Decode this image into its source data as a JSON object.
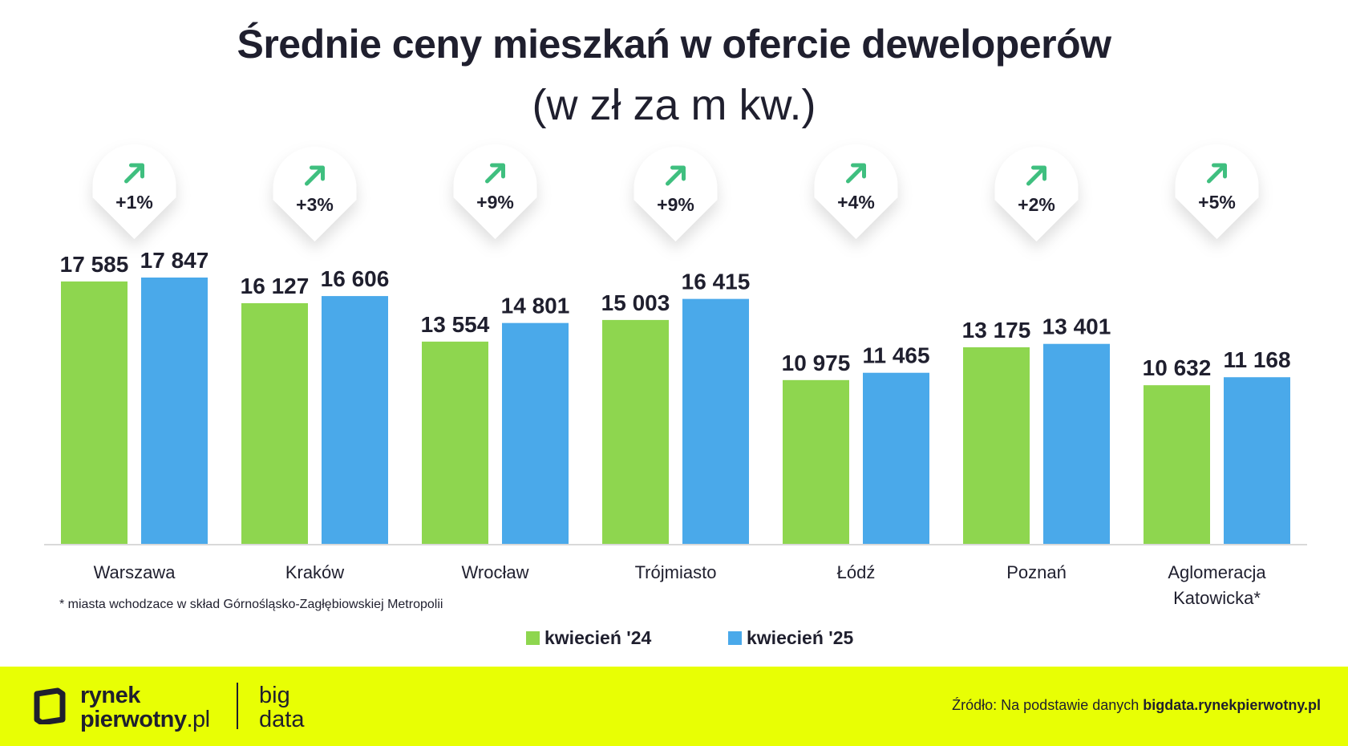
{
  "title": "Średnie ceny mieszkań w ofercie deweloperów",
  "subtitle": "(w zł za m kw.)",
  "chart_data": {
    "type": "bar",
    "title": "Średnie ceny mieszkań w ofercie deweloperów",
    "subtitle": "(w zł za m kw.)",
    "categories": [
      "Warszawa",
      "Kraków",
      "Wrocław",
      "Trójmiasto",
      "Łódź",
      "Poznań",
      "Aglomeracja Katowicka*"
    ],
    "series": [
      {
        "name": "kwiecień '24",
        "color": "#8ed64f",
        "values": [
          17585,
          16127,
          13554,
          15003,
          10975,
          13175,
          10632
        ],
        "labels": [
          "17 585",
          "16 127",
          "13 554",
          "15 003",
          "10 975",
          "13 175",
          "10 632"
        ]
      },
      {
        "name": "kwiecień '25",
        "color": "#4aa9ea",
        "values": [
          17847,
          16606,
          14801,
          16415,
          11465,
          13401,
          11168
        ],
        "labels": [
          "17 847",
          "16 606",
          "14 801",
          "16 415",
          "11 465",
          "13 401",
          "11 168"
        ]
      }
    ],
    "changes": [
      "+1%",
      "+3%",
      "+9%",
      "+9%",
      "+4%",
      "+2%",
      "+5%"
    ],
    "ylim": [
      0,
      19000
    ],
    "grid": false,
    "legend": "bottom-center",
    "arrow_color": "#3fbf7f"
  },
  "footnote": "* miasta wchodzace w skład Górnośląsko-Zagłębiowskiej Metropolii",
  "legend": {
    "item1": "kwiecień '24",
    "item2": "kwiecień '25"
  },
  "footer": {
    "logo_line1": "rynek",
    "logo_line2": "pierwotny",
    "logo_suffix": ".pl",
    "bigdata_line1": "big",
    "bigdata_line2": "data",
    "source_prefix": "Źródło: Na podstawie danych",
    "source_link": "bigdata.rynekpierwotny.pl",
    "background": "#e8ff04"
  }
}
